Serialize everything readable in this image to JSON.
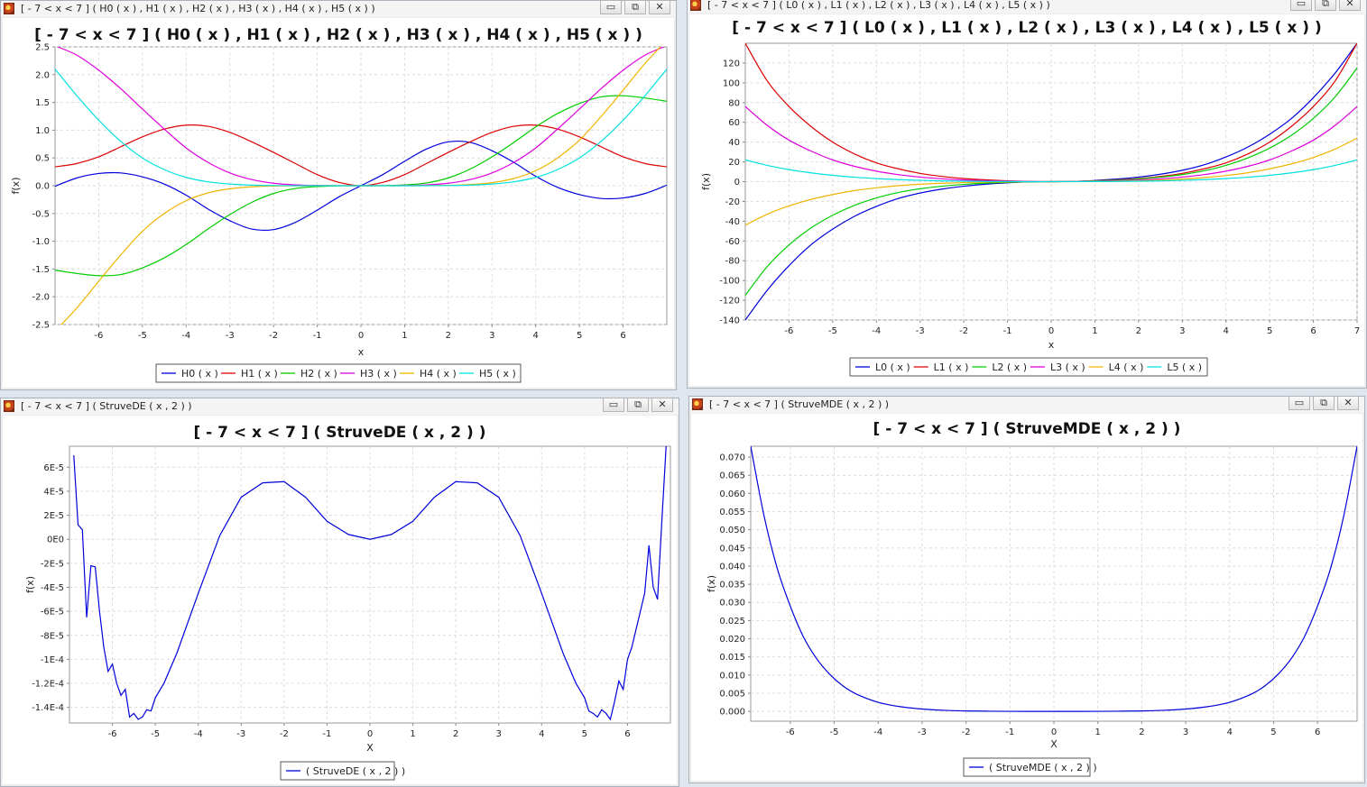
{
  "windows": [
    {
      "id": "hermite",
      "title": "[ - 7 < x < 7 ]  ( H0 ( x ) , H1 ( x ) , H2 ( x ) , H3 ( x ) , H4 ( x ) , H5 ( x ) )"
    },
    {
      "id": "laguerre",
      "title": "[ - 7 < x < 7 ]  ( L0 ( x ) , L1 ( x ) , L2 ( x ) , L3 ( x ) , L4 ( x ) , L5 ( x ) )"
    },
    {
      "id": "struve-de",
      "title": "[ - 7 < x < 7 ]  ( StruveDE ( x , 2 ) )"
    },
    {
      "id": "struve-mde",
      "title": "[ - 7 < x < 7 ]  ( StruveMDE ( x , 2 ) )"
    }
  ],
  "icons": {
    "minimize": "minimize-icon",
    "maximize": "maximize-icon",
    "close": "close-icon",
    "app": "app-icon"
  },
  "glyphs": {
    "minimize": "▭",
    "maximize": "⧉",
    "close": "✕"
  },
  "colors": {
    "blue": "#0000dd",
    "red": "#dd0000",
    "green": "#00cc00",
    "magenta": "#dd00dd",
    "orange": "#f0b400",
    "cyan": "#00e0e0"
  },
  "chart_data": [
    {
      "type": "line",
      "title": "[ - 7 < x < 7 ]  ( H0 ( x ) , H1 ( x ) , H2 ( x ) , H3 ( x ) , H4 ( x ) , H5 ( x ) )",
      "xlabel": "x",
      "ylabel": "f(x)",
      "xlim": [
        -7,
        7
      ],
      "ylim": [
        -2.5,
        2.5
      ],
      "xticks": [
        "-6",
        "-5",
        "-4",
        "-3",
        "-2",
        "-1",
        "0",
        "1",
        "2",
        "3",
        "4",
        "5",
        "6"
      ],
      "yticks": [
        "-2.5",
        "-2.0",
        "-1.5",
        "-1.0",
        "-0.5",
        "0.0",
        "0.5",
        "1.0",
        "1.5",
        "2.0",
        "2.5"
      ],
      "grid": true,
      "legend": "bottom",
      "x": [
        -7,
        -6.5,
        -6,
        -5.5,
        -5,
        -4.5,
        -4,
        -3.5,
        -3,
        -2.5,
        -2,
        -1.5,
        -1,
        -0.5,
        0,
        0.5,
        1,
        1.5,
        2,
        2.5,
        3,
        3.5,
        4,
        4.5,
        5,
        5.5,
        6,
        6.5,
        7
      ],
      "series": [
        {
          "name": "H0 ( x )",
          "color": "#0000dd",
          "values": [
            -0.01,
            0.14,
            0.22,
            0.23,
            0.16,
            0.03,
            -0.17,
            -0.42,
            -0.63,
            -0.78,
            -0.79,
            -0.66,
            -0.44,
            -0.2,
            0,
            0.2,
            0.44,
            0.66,
            0.79,
            0.78,
            0.63,
            0.42,
            0.17,
            -0.03,
            -0.16,
            -0.23,
            -0.22,
            -0.14,
            0.01
          ]
        },
        {
          "name": "H1 ( x )",
          "color": "#dd0000",
          "values": [
            0.34,
            0.4,
            0.52,
            0.7,
            0.88,
            1.02,
            1.09,
            1.07,
            0.96,
            0.79,
            0.6,
            0.4,
            0.2,
            0.06,
            0,
            0.06,
            0.2,
            0.4,
            0.6,
            0.79,
            0.96,
            1.07,
            1.09,
            1.02,
            0.88,
            0.7,
            0.52,
            0.4,
            0.34
          ]
        },
        {
          "name": "H2 ( x )",
          "color": "#00cc00",
          "values": [
            -1.52,
            -1.58,
            -1.62,
            -1.6,
            -1.48,
            -1.3,
            -1.06,
            -0.78,
            -0.52,
            -0.3,
            -0.14,
            -0.05,
            -0.015,
            -0.002,
            0,
            0.002,
            0.015,
            0.05,
            0.14,
            0.3,
            0.52,
            0.78,
            1.06,
            1.3,
            1.48,
            1.6,
            1.62,
            1.58,
            1.52
          ]
        },
        {
          "name": "H3 ( x )",
          "color": "#dd00dd",
          "values": [
            2.52,
            2.35,
            2.08,
            1.75,
            1.38,
            1.02,
            0.68,
            0.42,
            0.23,
            0.11,
            0.045,
            0.015,
            0.004,
            0.001,
            0,
            0.001,
            0.004,
            0.015,
            0.045,
            0.11,
            0.23,
            0.42,
            0.68,
            1.02,
            1.38,
            1.75,
            2.08,
            2.35,
            2.52
          ]
        },
        {
          "name": "H4 ( x )",
          "color": "#f0b400",
          "values": [
            -2.62,
            -2.2,
            -1.72,
            -1.25,
            -0.82,
            -0.5,
            -0.27,
            -0.13,
            -0.055,
            -0.02,
            -0.006,
            -0.0015,
            0,
            0,
            0,
            0,
            0,
            0.0015,
            0.006,
            0.02,
            0.055,
            0.13,
            0.27,
            0.5,
            0.82,
            1.25,
            1.72,
            2.2,
            2.62
          ]
        },
        {
          "name": "H5 ( x )",
          "color": "#00e0e0",
          "values": [
            2.1,
            1.62,
            1.18,
            0.8,
            0.5,
            0.29,
            0.15,
            0.07,
            0.03,
            0.01,
            0.003,
            0.0006,
            0,
            0,
            0,
            0,
            0,
            0.0006,
            0.003,
            0.01,
            0.03,
            0.07,
            0.15,
            0.29,
            0.5,
            0.8,
            1.18,
            1.62,
            2.1
          ]
        }
      ]
    },
    {
      "type": "line",
      "title": "[ - 7 < x < 7 ]  ( L0 ( x ) , L1 ( x ) , L2 ( x ) , L3 ( x ) , L4 ( x ) , L5 ( x ) )",
      "xlabel": "x",
      "ylabel": "f(x)",
      "xlim": [
        -7,
        7
      ],
      "ylim": [
        -140,
        140
      ],
      "xticks": [
        "-6",
        "-5",
        "-4",
        "-3",
        "-2",
        "-1",
        "0",
        "1",
        "2",
        "3",
        "4",
        "5",
        "6",
        "7"
      ],
      "yticks": [
        "-140",
        "-120",
        "-100",
        "-80",
        "-60",
        "-40",
        "-20",
        "0",
        "20",
        "40",
        "60",
        "80",
        "100",
        "120"
      ],
      "grid": true,
      "legend": "bottom",
      "x": [
        -7,
        -6.5,
        -6,
        -5.5,
        -5,
        -4.5,
        -4,
        -3.5,
        -3,
        -2.5,
        -2,
        -1.5,
        -1,
        -0.5,
        0,
        0.5,
        1,
        1.5,
        2,
        2.5,
        3,
        3.5,
        4,
        4.5,
        5,
        5.5,
        6,
        6.5,
        7
      ],
      "series": [
        {
          "name": "L0 ( x )",
          "color": "#0000dd",
          "values": [
            -140,
            -110,
            -85,
            -64,
            -48,
            -35,
            -25,
            -17,
            -11.5,
            -7.5,
            -4.6,
            -2.6,
            -1.2,
            -0.3,
            0,
            0.3,
            1.2,
            2.6,
            4.6,
            7.5,
            11.5,
            17,
            25,
            35,
            48,
            64,
            85,
            110,
            140
          ]
        },
        {
          "name": "L1 ( x )",
          "color": "#dd0000",
          "values": [
            140,
            102,
            76,
            56,
            40,
            28,
            19,
            13,
            8.4,
            5.3,
            3.2,
            1.8,
            0.8,
            0.2,
            0,
            0.2,
            0.8,
            1.8,
            3.2,
            5.3,
            8.4,
            13,
            19,
            28,
            40,
            56,
            76,
            102,
            140
          ]
        },
        {
          "name": "L2 ( x )",
          "color": "#00cc00",
          "values": [
            -115,
            -86,
            -64,
            -47,
            -34,
            -24,
            -16.5,
            -11,
            -7.2,
            -4.6,
            -2.8,
            -1.5,
            -0.7,
            -0.17,
            0,
            0.17,
            0.7,
            1.5,
            2.8,
            4.6,
            7.2,
            11,
            16.5,
            24,
            34,
            47,
            64,
            86,
            115
          ]
        },
        {
          "name": "L3 ( x )",
          "color": "#dd00dd",
          "values": [
            76,
            57,
            42,
            31,
            22,
            15.5,
            10.6,
            7.1,
            4.6,
            2.9,
            1.7,
            0.95,
            0.45,
            0.1,
            0,
            0.1,
            0.45,
            0.95,
            1.7,
            2.9,
            4.6,
            7.1,
            10.6,
            15.5,
            22,
            31,
            42,
            57,
            76
          ]
        },
        {
          "name": "L4 ( x )",
          "color": "#f0b400",
          "values": [
            -44,
            -33,
            -24.5,
            -18,
            -13,
            -9,
            -6.2,
            -4.1,
            -2.6,
            -1.6,
            -0.95,
            -0.5,
            -0.22,
            -0.05,
            0,
            0.05,
            0.22,
            0.5,
            0.95,
            1.6,
            2.6,
            4.1,
            6.2,
            9,
            13,
            18,
            24.5,
            33,
            44
          ]
        },
        {
          "name": "L5 ( x )",
          "color": "#00e0e0",
          "values": [
            22,
            16.5,
            12.2,
            8.9,
            6.4,
            4.5,
            3.1,
            2.05,
            1.3,
            0.8,
            0.46,
            0.24,
            0.1,
            0.02,
            0,
            0.02,
            0.1,
            0.24,
            0.46,
            0.8,
            1.3,
            2.05,
            3.1,
            4.5,
            6.4,
            8.9,
            12.2,
            16.5,
            22
          ]
        }
      ]
    },
    {
      "type": "line",
      "title": "[ - 7 < x < 7 ]  ( StruveDE ( x , 2 ) )",
      "xlabel": "X",
      "ylabel": "f(x)",
      "xlim": [
        -7,
        7
      ],
      "ylim": [
        -0.000153,
        7.75e-05
      ],
      "xticks": [
        "-6",
        "-5",
        "-4",
        "-3",
        "-2",
        "-1",
        "0",
        "1",
        "2",
        "3",
        "4",
        "5",
        "6"
      ],
      "yticks": [
        "-1.4E-4",
        "-1.2E-4",
        "-1E-4",
        "-8E-5",
        "-6E-5",
        "-4E-5",
        "-2E-5",
        "0E0",
        "2E-5",
        "4E-5",
        "6E-5"
      ],
      "ytick_values": [
        -0.00014,
        -0.00012,
        -0.0001,
        -8e-05,
        -6e-05,
        -4e-05,
        -2e-05,
        0,
        2e-05,
        4e-05,
        6e-05
      ],
      "grid": true,
      "legend": "bottom",
      "x": [
        -6.9,
        -6.8,
        -6.7,
        -6.6,
        -6.5,
        -6.4,
        -6.3,
        -6.2,
        -6.1,
        -6.0,
        -5.9,
        -5.8,
        -5.7,
        -5.6,
        -5.5,
        -5.4,
        -5.3,
        -5.2,
        -5.1,
        -5.0,
        -4.8,
        -4.5,
        -4.0,
        -3.5,
        -3.0,
        -2.5,
        -2.0,
        -1.5,
        -1.0,
        -0.5,
        0,
        0.5,
        1.0,
        1.5,
        2.0,
        2.5,
        3.0,
        3.5,
        4.0,
        4.5,
        4.8,
        5.0,
        5.1,
        5.2,
        5.3,
        5.4,
        5.5,
        5.6,
        5.7,
        5.8,
        5.9,
        6.0,
        6.1,
        6.2,
        6.3,
        6.4,
        6.5,
        6.6,
        6.7,
        6.8,
        6.9
      ],
      "series": [
        {
          "name": "( StruveDE ( x , 2 ) )",
          "color": "#0000dd",
          "values": [
            7e-05,
            1.2e-05,
            8e-06,
            -6.5e-05,
            -2.2e-05,
            -2.3e-05,
            -6e-05,
            -9e-05,
            -0.00011,
            -0.000104,
            -0.00012,
            -0.00013,
            -0.000125,
            -0.000148,
            -0.000145,
            -0.00015,
            -0.000148,
            -0.000142,
            -0.000143,
            -0.000132,
            -0.00012,
            -9.5e-05,
            -4.5e-05,
            3e-06,
            3.5e-05,
            4.7e-05,
            4.8e-05,
            3.5e-05,
            1.5e-05,
            4e-06,
            0,
            4e-06,
            1.5e-05,
            3.5e-05,
            4.8e-05,
            4.7e-05,
            3.5e-05,
            3e-06,
            -4.5e-05,
            -9.5e-05,
            -0.00012,
            -0.000132,
            -0.000143,
            -0.000145,
            -0.000148,
            -0.000142,
            -0.000145,
            -0.00015,
            -0.000135,
            -0.000118,
            -0.000125,
            -0.0001,
            -9e-05,
            -7.5e-05,
            -6e-05,
            -4.5e-05,
            -5e-06,
            -4e-05,
            -5e-05,
            1.5e-05,
            7.75e-05
          ]
        }
      ]
    },
    {
      "type": "line",
      "title": "[ - 7 < x < 7 ]  ( StruveMDE ( x , 2 ) )",
      "xlabel": "X",
      "ylabel": "f(x)",
      "xlim": [
        -6.9,
        6.9
      ],
      "ylim": [
        -0.0027,
        0.073
      ],
      "xticks": [
        "-6",
        "-5",
        "-4",
        "-3",
        "-2",
        "-1",
        "0",
        "1",
        "2",
        "3",
        "4",
        "5",
        "6"
      ],
      "yticks": [
        "0.000",
        "0.005",
        "0.010",
        "0.015",
        "0.020",
        "0.025",
        "0.030",
        "0.035",
        "0.040",
        "0.045",
        "0.050",
        "0.055",
        "0.060",
        "0.065",
        "0.070"
      ],
      "ytick_values": [
        0,
        0.005,
        0.01,
        0.015,
        0.02,
        0.025,
        0.03,
        0.035,
        0.04,
        0.045,
        0.05,
        0.055,
        0.06,
        0.065,
        0.07
      ],
      "grid": true,
      "legend": "bottom",
      "x": [
        -6.9,
        -6.6,
        -6.3,
        -6.0,
        -5.7,
        -5.4,
        -5.1,
        -4.8,
        -4.5,
        -4.0,
        -3.5,
        -3.0,
        -2.5,
        -2.0,
        -1.5,
        -1.0,
        -0.5,
        0,
        0.5,
        1.0,
        1.5,
        2.0,
        2.5,
        3.0,
        3.5,
        4.0,
        4.5,
        4.8,
        5.1,
        5.4,
        5.7,
        6.0,
        6.3,
        6.6,
        6.9
      ],
      "series": [
        {
          "name": "( StruveMDE ( x , 2 ) )",
          "color": "#0000dd",
          "values": [
            0.073,
            0.054,
            0.0395,
            0.029,
            0.0205,
            0.0145,
            0.0102,
            0.007,
            0.0048,
            0.0025,
            0.0013,
            0.00065,
            0.0003,
            0.00013,
            5e-05,
            1e-05,
            0,
            0,
            0,
            1e-05,
            5e-05,
            0.00013,
            0.0003,
            0.00065,
            0.0013,
            0.0025,
            0.0048,
            0.007,
            0.0102,
            0.0145,
            0.0205,
            0.029,
            0.0395,
            0.054,
            0.073
          ]
        }
      ]
    }
  ]
}
